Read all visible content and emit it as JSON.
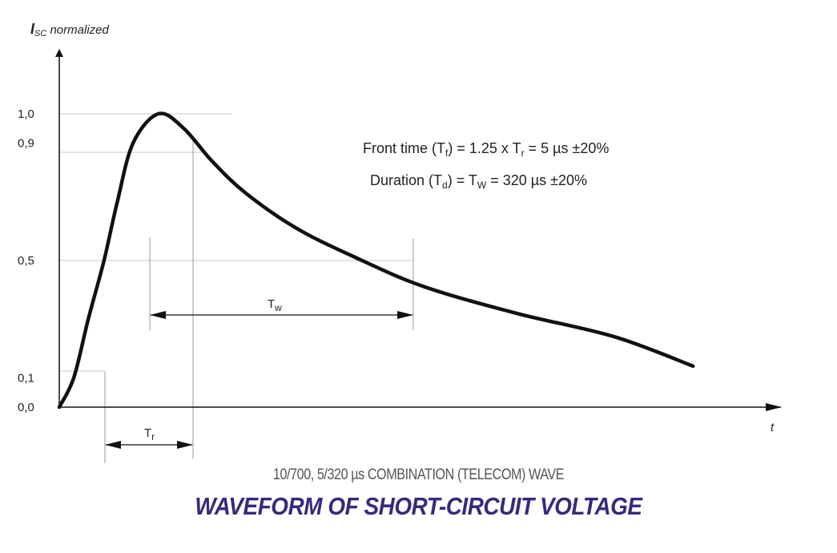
{
  "chart_data": {
    "type": "line",
    "ylabel_main": "I",
    "ylabel_sub": "SC",
    "ylabel_rest": " normalized",
    "xlabel": "t",
    "y_ticks": [
      "1,0",
      "0,9",
      "0,5",
      "0,1",
      "0,0"
    ],
    "y_tick_values": [
      1.0,
      0.9,
      0.5,
      0.1,
      0.0
    ],
    "ylim": [
      0,
      1.15
    ],
    "grid": "horizontal reference lines at tick values",
    "series": [
      {
        "values_t_us": [
          0,
          1.2,
          2.4,
          3.7,
          4.8,
          6.1,
          8.2,
          10.3,
          12.6,
          15.4,
          19.6,
          24.5,
          30.2,
          37.8,
          45.9,
          52.4
        ],
        "values_i": [
          0.0,
          0.1,
          0.3,
          0.5,
          0.7,
          0.9,
          1.0,
          0.95,
          0.84,
          0.73,
          0.61,
          0.51,
          0.41,
          0.32,
          0.24,
          0.14
        ]
      }
    ],
    "annotations": {
      "tr_label_main": "T",
      "tr_label_sub": "r",
      "tw_label_main": "T",
      "tw_label_sub": "w"
    }
  },
  "formulas": {
    "line1": {
      "a": "Front time (T",
      "a_sub": "f",
      "b": ") =  1.25 x T",
      "b_sub": "r",
      "c": "  = 5 µs ±20%"
    },
    "line2": {
      "a": "Duration (T",
      "a_sub": "d",
      "b": ") =      T",
      "b_sub": "W",
      "c": "      = 320 µs ±20%"
    }
  },
  "captions": {
    "subtitle": "10/700, 5/320 µs COMBINATION (TELECOM) WAVE",
    "title": "WAVEFORM OF SHORT-CIRCUIT VOLTAGE"
  },
  "colors": {
    "curve": "#111111",
    "grid": "#c8c8c8",
    "title": "#352a7c",
    "subtitle": "#555555"
  }
}
